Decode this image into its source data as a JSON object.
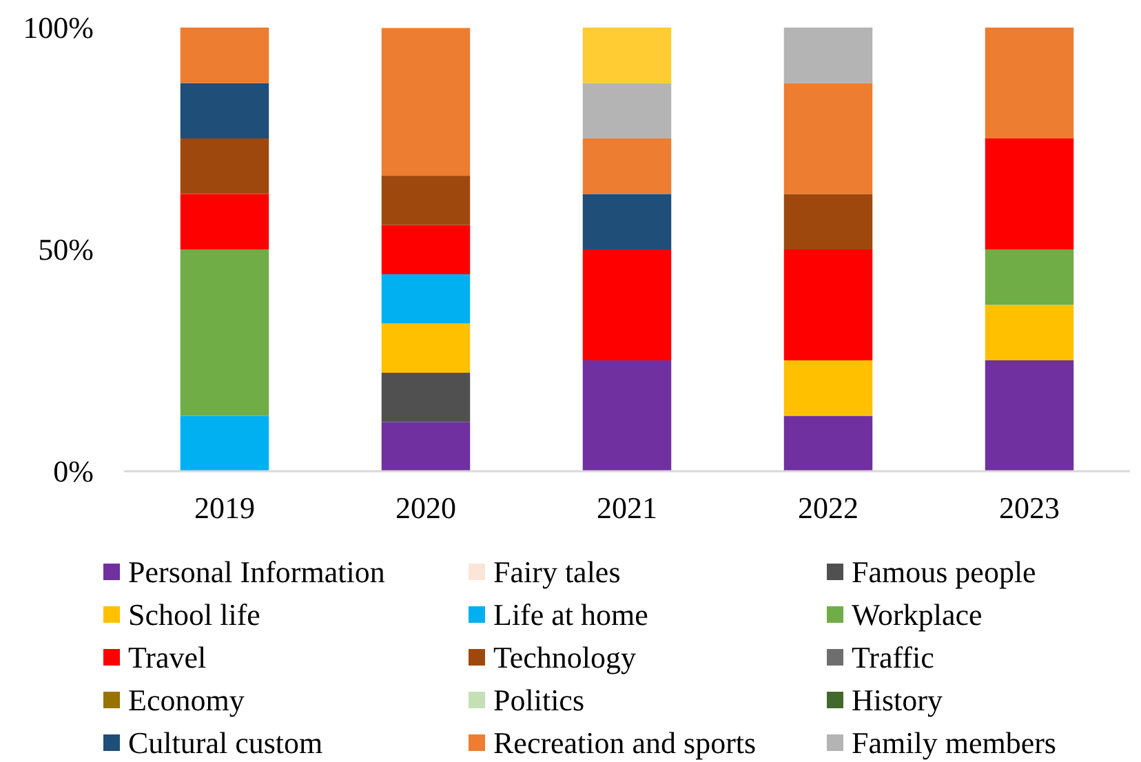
{
  "chart_data": {
    "type": "bar",
    "stacked": true,
    "categories": [
      "2019",
      "2020",
      "2021",
      "2022",
      "2023"
    ],
    "ylim": [
      0,
      100
    ],
    "yticks": [
      {
        "value": 0,
        "label": "0%"
      },
      {
        "value": 50,
        "label": "50%"
      },
      {
        "value": 100,
        "label": "100%"
      }
    ],
    "legend": "bottom",
    "grid": false,
    "series": [
      {
        "name": "Personal Information",
        "color": "#7030a0",
        "values": [
          0,
          11.1,
          25,
          12.5,
          25
        ]
      },
      {
        "name": "Fairy tales",
        "color": "#fbe5d6",
        "values": [
          0,
          0,
          0,
          0,
          0
        ]
      },
      {
        "name": "Famous people",
        "color": "#505050",
        "values": [
          0,
          11.1,
          0,
          0,
          0
        ]
      },
      {
        "name": "School life",
        "color": "#ffc000",
        "values": [
          0,
          11.1,
          0,
          12.5,
          12.5
        ]
      },
      {
        "name": "Life at home",
        "color": "#00b0f0",
        "values": [
          12.5,
          11.1,
          0,
          0,
          0
        ]
      },
      {
        "name": "Workplace",
        "color": "#70ad47",
        "values": [
          37.5,
          0,
          0,
          0,
          12.5
        ]
      },
      {
        "name": "Travel",
        "color": "#ff0000",
        "values": [
          12.5,
          11.1,
          25,
          25,
          25
        ]
      },
      {
        "name": "Technology",
        "color": "#9e480e",
        "values": [
          12.5,
          11.1,
          0,
          12.5,
          0
        ]
      },
      {
        "name": "Traffic",
        "color": "#6e6e6e",
        "values": [
          0,
          0,
          0,
          0,
          0
        ]
      },
      {
        "name": "Economy",
        "color": "#997300",
        "values": [
          0,
          0,
          0,
          0,
          0
        ]
      },
      {
        "name": "Politics",
        "color": "#c5e0b4",
        "values": [
          0,
          0,
          0,
          0,
          0
        ]
      },
      {
        "name": "History",
        "color": "#43682b",
        "values": [
          0,
          0,
          0,
          0,
          0
        ]
      },
      {
        "name": "Cultural custom",
        "color": "#1f4e79",
        "values": [
          12.5,
          0,
          12.5,
          0,
          0
        ]
      },
      {
        "name": "Recreation and sports",
        "color": "#ed7d31",
        "values": [
          12.5,
          33.3,
          12.5,
          25,
          25
        ]
      },
      {
        "name": "Family members",
        "color": "#b4b4b4",
        "values": [
          0,
          0,
          12.5,
          12.5,
          0
        ]
      },
      {
        "color": "#ffcc33",
        "values": [
          0,
          0,
          12.5,
          0,
          0
        ]
      }
    ]
  }
}
